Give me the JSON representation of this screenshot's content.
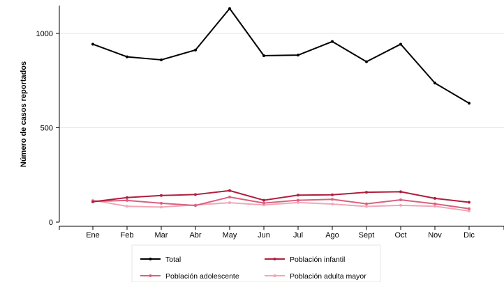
{
  "chart_data": {
    "type": "line",
    "title": "",
    "xlabel": "",
    "ylabel": "Número de casos reportados",
    "categories": [
      "Ene",
      "Feb",
      "Mar",
      "Abr",
      "May",
      "Jun",
      "Jul",
      "Ago",
      "Sept",
      "Oct",
      "Nov",
      "Dic"
    ],
    "ylim": [
      0,
      1150
    ],
    "yticks": [
      0,
      500,
      1000
    ],
    "grid": "horizontal",
    "legend_position": "bottom",
    "series": [
      {
        "name": "Total",
        "color": "#000000",
        "values": [
          943,
          876,
          860,
          912,
          1132,
          882,
          885,
          957,
          850,
          943,
          737,
          630
        ]
      },
      {
        "name": "Población infantil",
        "color": "#b01e3c",
        "values": [
          108,
          130,
          141,
          146,
          167,
          116,
          143,
          145,
          158,
          161,
          126,
          105
        ]
      },
      {
        "name": "Población adolescente",
        "color": "#d96080",
        "values": [
          110,
          115,
          100,
          88,
          133,
          101,
          116,
          121,
          97,
          118,
          97,
          71
        ]
      },
      {
        "name": "Población adulta mayor",
        "color": "#f2a6b6",
        "values": [
          116,
          84,
          80,
          91,
          103,
          91,
          104,
          96,
          83,
          89,
          84,
          59
        ]
      }
    ]
  }
}
